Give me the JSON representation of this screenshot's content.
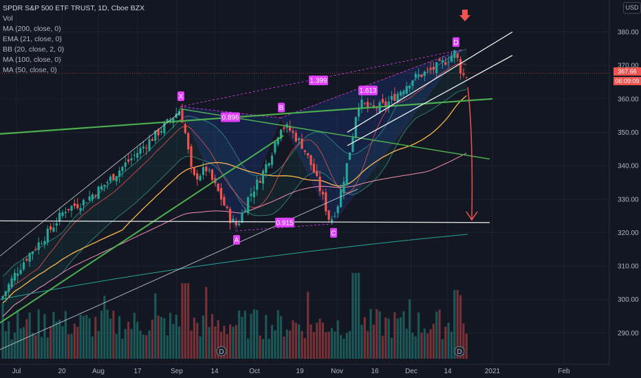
{
  "header": {
    "title": "SPDR S&P 500 ETF TRUST, 1D, Cboe BZX",
    "currency": "USD"
  },
  "indicators": [
    "Vol",
    "MA (200, close, 0)",
    "EMA (21, close, 0)",
    "BB (20, close, 2, 0)",
    "MA (100, close, 0)",
    "MA (50, close, 0)"
  ],
  "price_scale": {
    "last_price": "367.66",
    "countdown": "06:09:09",
    "last_price_color": "#ef5350",
    "countdown_color": "#ef5350"
  },
  "colors": {
    "up": "#26a69a",
    "down": "#ef5350",
    "vol_up": "#26a69a",
    "vol_down": "#ef5350",
    "pattern": "#e040fb",
    "trend_green": "#4caf50",
    "ema21": "#ef5350",
    "ma50": "#ffb74d",
    "ma100": "#f48fb1",
    "ma200": "#26a69a",
    "bb": "#2e7d77"
  },
  "chart_data": {
    "type": "candlestick",
    "y_ticks": [
      "380.00",
      "370.00",
      "360.00",
      "350.00",
      "340.00",
      "330.00",
      "320.00",
      "310.00",
      "300.00",
      "290.00"
    ],
    "y_values": [
      380,
      370,
      360,
      350,
      340,
      330,
      320,
      310,
      300,
      290
    ],
    "x_ticks": [
      "Jul",
      "20",
      "Aug",
      "17",
      "Sep",
      "14",
      "Oct",
      "19",
      "Nov",
      "16",
      "Dec",
      "14",
      "2021",
      "Feb"
    ],
    "harmonic_pattern": {
      "points": [
        {
          "label": "X",
          "price": 357.7
        },
        {
          "label": "A",
          "price": 320.5
        },
        {
          "label": "B",
          "price": 354.3
        },
        {
          "label": "C",
          "price": 322.6
        },
        {
          "label": "D",
          "price": 374.7
        }
      ],
      "ratios": [
        "0.896",
        "0.915",
        "1.399",
        "1.613"
      ]
    },
    "dividend_markers": [
      "D",
      "D"
    ],
    "y_range": [
      281,
      385
    ]
  }
}
